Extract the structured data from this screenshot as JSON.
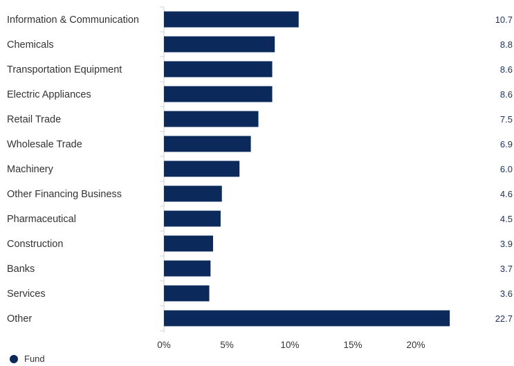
{
  "colors": {
    "bar": "#0b2a5b",
    "value_text": "#1b2f5c",
    "axis": "#d0d0d0",
    "text": "#333333"
  },
  "chart_data": {
    "type": "bar",
    "orientation": "horizontal",
    "categories": [
      "Information & Communication",
      "Chemicals",
      "Transportation Equipment",
      "Electric Appliances",
      "Retail Trade",
      "Wholesale Trade",
      "Machinery",
      "Other Financing Business",
      "Pharmaceutical",
      "Construction",
      "Banks",
      "Services",
      "Other"
    ],
    "series": [
      {
        "name": "Fund",
        "values": [
          10.7,
          8.8,
          8.6,
          8.6,
          7.5,
          6.9,
          6.0,
          4.6,
          4.5,
          3.9,
          3.7,
          3.6,
          22.7
        ]
      }
    ],
    "value_labels": [
      "10.7",
      "8.8",
      "8.6",
      "8.6",
      "7.5",
      "6.9",
      "6.0",
      "4.6",
      "4.5",
      "3.9",
      "3.7",
      "3.6",
      "22.7"
    ],
    "x_ticks": [
      "0%",
      "5%",
      "10%",
      "15%",
      "20%"
    ],
    "x_tick_values": [
      0,
      5,
      10,
      15,
      20
    ],
    "xlim": [
      0,
      25
    ],
    "grid": false,
    "legend": "bottom-left"
  },
  "legend": {
    "label": "Fund"
  }
}
